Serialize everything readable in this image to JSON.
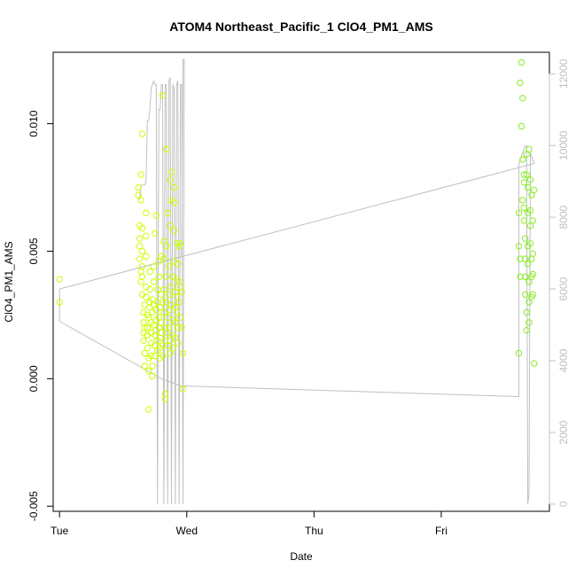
{
  "chart_data": {
    "type": "scatter",
    "title": "ATOM4 Northeast_Pacific_1 ClO4_PM1_AMS",
    "xlabel": "Date",
    "ylabel": "ClO4_PM1_AMS",
    "xlim": [
      -0.05,
      3.85
    ],
    "ylim": [
      -0.0052,
      0.0128
    ],
    "x_ticks": [
      {
        "v": 0,
        "label": "Tue"
      },
      {
        "v": 1,
        "label": "Wed"
      },
      {
        "v": 2,
        "label": "Thu"
      },
      {
        "v": 3,
        "label": "Fri"
      }
    ],
    "y_ticks": [
      {
        "v": -0.005,
        "label": "-0.005"
      },
      {
        "v": 0.0,
        "label": "0.000"
      },
      {
        "v": 0.005,
        "label": "0.005"
      },
      {
        "v": 0.01,
        "label": "0.010"
      }
    ],
    "y2_ticks": [
      {
        "v": 0,
        "label": "0"
      },
      {
        "v": 2000,
        "label": "2000"
      },
      {
        "v": 4000,
        "label": "4000"
      },
      {
        "v": 6000,
        "label": "6000"
      },
      {
        "v": 8000,
        "label": "8000"
      },
      {
        "v": 10000,
        "label": "10000"
      },
      {
        "v": 12000,
        "label": "12000"
      }
    ],
    "y2lim": [
      -200,
      12600
    ],
    "grid": false,
    "point_color": "#ccff00",
    "point_color_alt": "#88ee22",
    "line_color": "#c0c0c0",
    "series": [
      {
        "points": [
          [
            0.0,
            0.0039
          ],
          [
            0.0,
            0.003
          ],
          [
            0.62,
            0.0075
          ],
          [
            0.62,
            0.0072
          ],
          [
            0.63,
            0.006
          ],
          [
            0.63,
            0.0055
          ],
          [
            0.63,
            0.0052
          ],
          [
            0.63,
            0.0047
          ],
          [
            0.64,
            0.0042
          ],
          [
            0.64,
            0.0038
          ],
          [
            0.64,
            0.007
          ],
          [
            0.64,
            0.008
          ],
          [
            0.65,
            0.0096
          ],
          [
            0.65,
            0.0059
          ],
          [
            0.65,
            0.005
          ],
          [
            0.65,
            0.0044
          ],
          [
            0.65,
            0.004
          ],
          [
            0.65,
            0.0033
          ],
          [
            0.66,
            0.0026
          ],
          [
            0.66,
            0.0022
          ],
          [
            0.66,
            0.0018
          ],
          [
            0.66,
            0.0015
          ],
          [
            0.67,
            0.001
          ],
          [
            0.67,
            0.0005
          ],
          [
            0.67,
            0.002
          ],
          [
            0.67,
            0.0029
          ],
          [
            0.68,
            0.0065
          ],
          [
            0.68,
            0.0056
          ],
          [
            0.68,
            0.0048
          ],
          [
            0.68,
            0.0036
          ],
          [
            0.68,
            0.0032
          ],
          [
            0.69,
            0.0025
          ],
          [
            0.69,
            0.002
          ],
          [
            0.69,
            0.0017
          ],
          [
            0.69,
            0.0012
          ],
          [
            0.7,
            0.0008
          ],
          [
            0.7,
            0.0003
          ],
          [
            0.7,
            -0.0012
          ],
          [
            0.7,
            0.0024
          ],
          [
            0.71,
            0.003
          ],
          [
            0.71,
            0.0035
          ],
          [
            0.71,
            0.0042
          ],
          [
            0.71,
            0.0028
          ],
          [
            0.72,
            0.0022
          ],
          [
            0.72,
            0.0018
          ],
          [
            0.72,
            0.0014
          ],
          [
            0.72,
            0.0009
          ],
          [
            0.73,
            0.0005
          ],
          [
            0.73,
            0.0001
          ],
          [
            0.73,
            0.0026
          ],
          [
            0.73,
            0.0031
          ],
          [
            0.74,
            0.0038
          ],
          [
            0.74,
            0.0044
          ],
          [
            0.74,
            0.0029
          ],
          [
            0.74,
            0.0021
          ],
          [
            0.75,
            0.0017
          ],
          [
            0.75,
            0.0013
          ],
          [
            0.75,
            0.0009
          ],
          [
            0.75,
            0.0057
          ],
          [
            0.76,
            0.0064
          ],
          [
            0.76,
            0.0027
          ],
          [
            0.76,
            0.0023
          ],
          [
            0.76,
            0.0019
          ],
          [
            0.77,
            0.0015
          ],
          [
            0.77,
            0.0011
          ],
          [
            0.77,
            0.003
          ],
          [
            0.77,
            0.0035
          ],
          [
            0.78,
            0.004
          ],
          [
            0.78,
            0.0046
          ],
          [
            0.78,
            0.0024
          ],
          [
            0.78,
            0.002
          ],
          [
            0.79,
            0.0016
          ],
          [
            0.79,
            0.0012
          ],
          [
            0.79,
            0.0008
          ],
          [
            0.79,
            0.0028
          ],
          [
            0.8,
            0.0033
          ],
          [
            0.8,
            0.0048
          ],
          [
            0.8,
            0.0022
          ],
          [
            0.8,
            0.0018
          ],
          [
            0.81,
            0.0013
          ],
          [
            0.81,
            0.0009
          ],
          [
            0.81,
            0.003
          ],
          [
            0.81,
            0.0111
          ],
          [
            0.82,
            0.0054
          ],
          [
            0.82,
            0.0047
          ],
          [
            0.82,
            0.0035
          ],
          [
            0.82,
            0.0026
          ],
          [
            0.83,
            0.002
          ],
          [
            0.83,
            0.0015
          ],
          [
            0.83,
            -0.0006
          ],
          [
            0.83,
            -0.0008
          ],
          [
            0.84,
            0.009
          ],
          [
            0.84,
            0.0052
          ],
          [
            0.84,
            0.004
          ],
          [
            0.84,
            0.003
          ],
          [
            0.85,
            0.0024
          ],
          [
            0.85,
            0.0018
          ],
          [
            0.85,
            0.0013
          ],
          [
            0.85,
            0.0065
          ],
          [
            0.86,
            0.0044
          ],
          [
            0.86,
            0.0033
          ],
          [
            0.86,
            0.0027
          ],
          [
            0.86,
            0.002
          ],
          [
            0.87,
            0.0015
          ],
          [
            0.87,
            0.001
          ],
          [
            0.87,
            0.0078
          ],
          [
            0.87,
            0.006
          ],
          [
            0.88,
            0.007
          ],
          [
            0.88,
            0.0081
          ],
          [
            0.88,
            0.0036
          ],
          [
            0.88,
            0.0029
          ],
          [
            0.89,
            0.0023
          ],
          [
            0.89,
            0.0017
          ],
          [
            0.89,
            0.0012
          ],
          [
            0.89,
            0.004
          ],
          [
            0.9,
            0.0075
          ],
          [
            0.9,
            0.0069
          ],
          [
            0.9,
            0.0058
          ],
          [
            0.9,
            0.0046
          ],
          [
            0.91,
            0.0034
          ],
          [
            0.91,
            0.0028
          ],
          [
            0.91,
            0.0022
          ],
          [
            0.91,
            0.0016
          ],
          [
            0.92,
            0.0053
          ],
          [
            0.92,
            0.0039
          ],
          [
            0.92,
            0.0032
          ],
          [
            0.92,
            0.0026
          ],
          [
            0.93,
            0.002
          ],
          [
            0.93,
            0.0014
          ],
          [
            0.93,
            0.0045
          ],
          [
            0.94,
            0.0052
          ],
          [
            0.94,
            0.0038
          ],
          [
            0.94,
            0.003
          ],
          [
            0.95,
            0.0024
          ],
          [
            0.95,
            0.0036
          ],
          [
            0.95,
            0.0053
          ],
          [
            0.96,
            0.0034
          ],
          [
            0.96,
            0.002
          ],
          [
            0.97,
            0.001
          ],
          [
            0.97,
            -0.0004
          ],
          [
            3.62,
            0.0116
          ],
          [
            3.63,
            0.0124
          ],
          [
            3.63,
            0.0099
          ],
          [
            3.64,
            0.011
          ],
          [
            3.64,
            0.0086
          ],
          [
            3.64,
            0.007
          ],
          [
            3.65,
            0.008
          ],
          [
            3.65,
            0.0077
          ],
          [
            3.65,
            0.0067
          ],
          [
            3.65,
            0.0062
          ],
          [
            3.66,
            0.0055
          ],
          [
            3.66,
            0.0047
          ],
          [
            3.66,
            0.004
          ],
          [
            3.66,
            0.0033
          ],
          [
            3.67,
            0.0026
          ],
          [
            3.67,
            0.0019
          ],
          [
            3.67,
            0.008
          ],
          [
            3.67,
            0.0088
          ],
          [
            3.68,
            0.0075
          ],
          [
            3.68,
            0.0065
          ],
          [
            3.68,
            0.0052
          ],
          [
            3.68,
            0.0045
          ],
          [
            3.69,
            0.0038
          ],
          [
            3.69,
            0.003
          ],
          [
            3.69,
            0.0022
          ],
          [
            3.69,
            0.009
          ],
          [
            3.7,
            0.0078
          ],
          [
            3.7,
            0.0066
          ],
          [
            3.7,
            0.006
          ],
          [
            3.7,
            0.0053
          ],
          [
            3.71,
            0.0047
          ],
          [
            3.71,
            0.004
          ],
          [
            3.71,
            0.0032
          ],
          [
            3.71,
            0.0072
          ],
          [
            3.72,
            0.0062
          ],
          [
            3.72,
            0.0049
          ],
          [
            3.72,
            0.0041
          ],
          [
            3.72,
            0.0033
          ],
          [
            3.73,
            0.0074
          ],
          [
            3.73,
            0.0006
          ],
          [
            3.61,
            0.0065
          ],
          [
            3.61,
            0.0052
          ],
          [
            3.61,
            0.001
          ],
          [
            3.62,
            0.0047
          ],
          [
            3.62,
            0.004
          ]
        ]
      }
    ],
    "line_path_right_axis": [
      [
        0.0,
        6000
      ],
      [
        0.0,
        5100
      ],
      [
        0.8,
        3500
      ],
      [
        0.95,
        3300
      ],
      [
        3.6,
        3000
      ],
      [
        3.61,
        3000
      ],
      [
        3.61,
        9500
      ],
      [
        3.62,
        9600
      ],
      [
        3.63,
        9700
      ],
      [
        3.64,
        9800
      ],
      [
        3.65,
        9900
      ],
      [
        3.66,
        10000
      ],
      [
        3.67,
        10000
      ],
      [
        3.68,
        0
      ],
      [
        3.69,
        300
      ],
      [
        3.7,
        9800
      ],
      [
        3.71,
        9700
      ],
      [
        3.72,
        9600
      ],
      [
        3.73,
        9500
      ],
      [
        0.0,
        6000
      ],
      [
        0.95,
        6900
      ],
      [
        0.96,
        6900
      ],
      [
        0.97,
        12400
      ],
      [
        0.98,
        12400
      ],
      [
        0.98,
        12300
      ],
      [
        0.97,
        0
      ],
      [
        0.96,
        11700
      ],
      [
        0.95,
        11700
      ],
      [
        0.94,
        0
      ],
      [
        0.93,
        11800
      ],
      [
        0.92,
        11700
      ],
      [
        0.91,
        0
      ],
      [
        0.9,
        11600
      ],
      [
        0.89,
        11700
      ],
      [
        0.88,
        0
      ],
      [
        0.87,
        11900
      ],
      [
        0.86,
        11800
      ],
      [
        0.85,
        0
      ],
      [
        0.84,
        11700
      ],
      [
        0.83,
        11700
      ],
      [
        0.82,
        0
      ],
      [
        0.81,
        11700
      ],
      [
        0.8,
        11700
      ],
      [
        0.79,
        11000
      ],
      [
        0.78,
        11000
      ],
      [
        0.77,
        0
      ],
      [
        0.76,
        11700
      ],
      [
        0.75,
        11700
      ],
      [
        0.74,
        11800
      ],
      [
        0.73,
        11700
      ],
      [
        0.72,
        11600
      ],
      [
        0.71,
        11000
      ],
      [
        0.7,
        10700
      ],
      [
        0.69,
        10700
      ],
      [
        0.68,
        9000
      ],
      [
        0.67,
        8900
      ],
      [
        0.66,
        8900
      ],
      [
        0.65,
        8900
      ],
      [
        0.64,
        8900
      ],
      [
        0.63,
        8500
      ],
      [
        0.62,
        8500
      ]
    ]
  }
}
